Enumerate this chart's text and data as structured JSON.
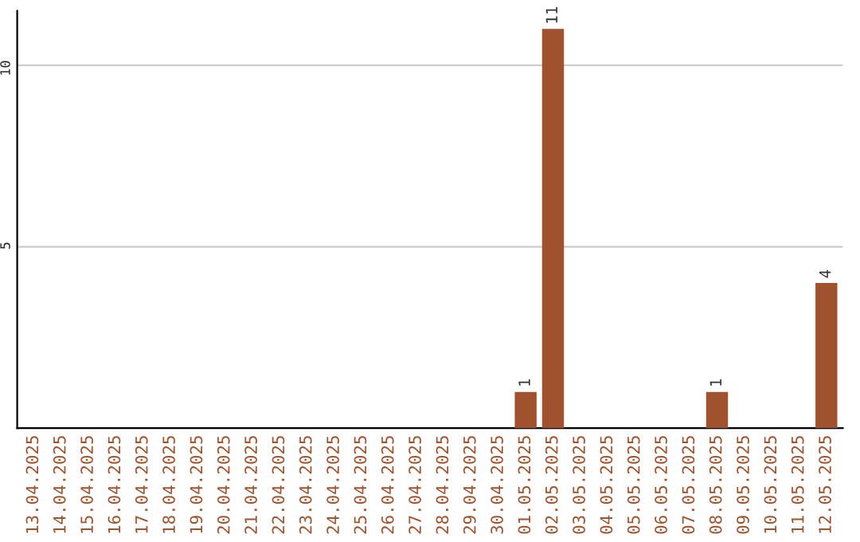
{
  "chart_data": {
    "type": "bar",
    "categories": [
      "13.04.2025",
      "14.04.2025",
      "15.04.2025",
      "16.04.2025",
      "17.04.2025",
      "18.04.2025",
      "19.04.2025",
      "20.04.2025",
      "21.04.2025",
      "22.04.2025",
      "23.04.2025",
      "24.04.2025",
      "25.04.2025",
      "26.04.2025",
      "27.04.2025",
      "28.04.2025",
      "29.04.2025",
      "30.04.2025",
      "01.05.2025",
      "02.05.2025",
      "03.05.2025",
      "04.05.2025",
      "05.05.2025",
      "06.05.2025",
      "07.05.2025",
      "08.05.2025",
      "09.05.2025",
      "10.05.2025",
      "11.05.2025",
      "12.05.2025"
    ],
    "values": [
      0,
      0,
      0,
      0,
      0,
      0,
      0,
      0,
      0,
      0,
      0,
      0,
      0,
      0,
      0,
      0,
      0,
      0,
      1,
      11,
      0,
      0,
      0,
      0,
      0,
      1,
      0,
      0,
      0,
      4
    ],
    "value_labels": [
      null,
      null,
      null,
      null,
      null,
      null,
      null,
      null,
      null,
      null,
      null,
      null,
      null,
      null,
      null,
      null,
      null,
      null,
      "1",
      "11",
      null,
      null,
      null,
      null,
      null,
      "1",
      null,
      null,
      null,
      "4"
    ],
    "color": "#a0522d",
    "ylim": [
      0,
      11.5
    ],
    "yticks": [
      5,
      10
    ],
    "grid": "y"
  }
}
